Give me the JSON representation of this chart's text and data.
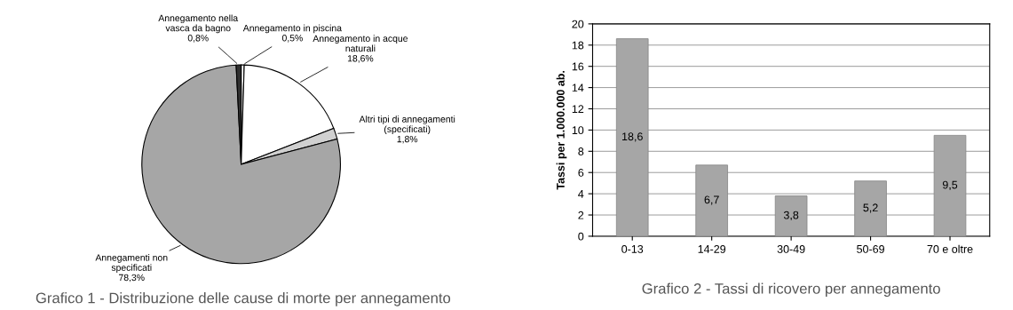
{
  "chart_data": [
    {
      "type": "pie",
      "title": "Grafico 1 - Distribuzione delle cause di morte per annegamento",
      "categories": [
        "Annegamento in piscina",
        "Annegamento in acque\nnaturali",
        "Altri tipi di annegamenti\n(specificati)",
        "Annegamenti non\nspecificati",
        "Annegamento nella\nvasca da bagno"
      ],
      "values": [
        0.5,
        18.6,
        1.8,
        78.3,
        0.8
      ],
      "value_labels": [
        "0,5%",
        "18,6%",
        "1,8%",
        "78,3%",
        "0,8%"
      ],
      "colors": [
        "#ffffff",
        "#ffffff",
        "#d0d0d0",
        "#a6a6a6",
        "#303030"
      ]
    },
    {
      "type": "bar",
      "title": "Grafico 2 - Tassi di ricovero per annegamento",
      "ylabel": "Tassi per 1.000.000 ab.",
      "categories": [
        "0-13",
        "14-29",
        "30-49",
        "50-69",
        "70 e oltre"
      ],
      "values": [
        18.6,
        6.7,
        3.8,
        5.2,
        9.5
      ],
      "value_labels": [
        "18,6",
        "6,7",
        "3,8",
        "5,2",
        "9,5"
      ],
      "color": "#a6a6a6",
      "ylim": [
        0,
        20
      ],
      "yticks": [
        0,
        2,
        4,
        6,
        8,
        10,
        12,
        14,
        16,
        18,
        20
      ],
      "grid": "y"
    }
  ]
}
